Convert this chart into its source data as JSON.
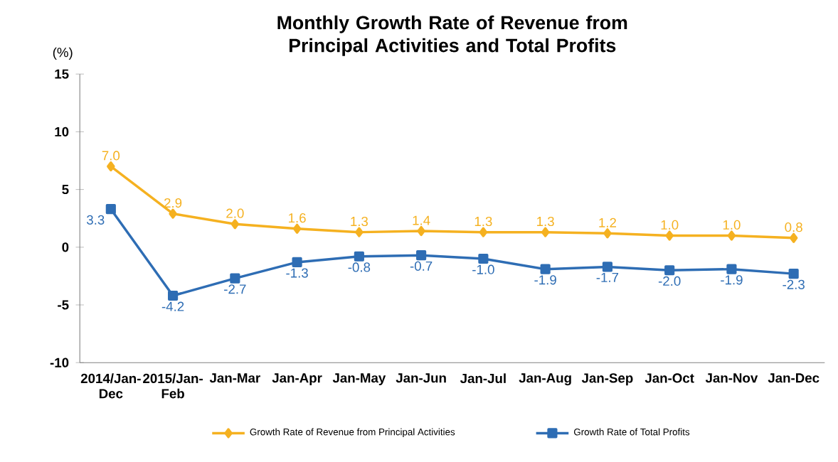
{
  "chart_data": {
    "type": "line",
    "title": "Monthly Growth Rate of Revenue from Principal Activities  and Total Profits",
    "ylabel": "(%)",
    "categories": [
      "2014/Jan-Dec",
      "2015/Jan-Feb",
      "Jan-Mar",
      "Jan-Apr",
      "Jan-May",
      "Jan-Jun",
      "Jan-Jul",
      "Jan-Aug",
      "Jan-Sep",
      "Jan-Oct",
      "Jan-Nov",
      "Jan-Dec"
    ],
    "series": [
      {
        "name": "Growth Rate of Revenue from Principal Activities",
        "color": "#f5b120",
        "marker": "diamond",
        "values": [
          7.0,
          2.9,
          2.0,
          1.6,
          1.3,
          1.4,
          1.3,
          1.3,
          1.2,
          1.0,
          1.0,
          0.8
        ],
        "value_labels": [
          "7.0",
          "2.9",
          "2.0",
          "1.6",
          "1.3",
          "1.4",
          "1.3",
          "1.3",
          "1.2",
          "1.0",
          "1.0",
          "0.8"
        ]
      },
      {
        "name": "Growth Rate of Total Profits",
        "color": "#2e6db4",
        "marker": "square",
        "values": [
          3.3,
          -4.2,
          -2.7,
          -1.3,
          -0.8,
          -0.7,
          -1.0,
          -1.9,
          -1.7,
          -2.0,
          -1.9,
          -2.3
        ],
        "value_labels": [
          "3.3",
          "-4.2",
          "-2.7",
          "-1.3",
          "-0.8",
          "-0.7",
          "-1.0",
          "-1.9",
          "-1.7",
          "-2.0",
          "-1.9",
          "-2.3"
        ]
      }
    ],
    "ylim": [
      -10,
      15
    ],
    "yticks": [
      -10,
      -5,
      0,
      5,
      10,
      15
    ],
    "legend": "bottom",
    "grid": false
  }
}
